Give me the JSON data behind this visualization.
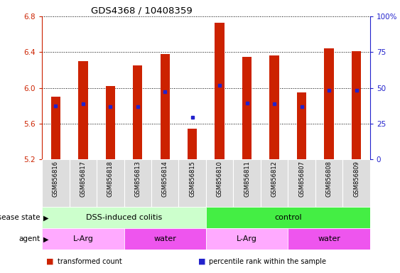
{
  "title": "GDS4368 / 10408359",
  "samples": [
    "GSM856816",
    "GSM856817",
    "GSM856818",
    "GSM856813",
    "GSM856814",
    "GSM856815",
    "GSM856810",
    "GSM856811",
    "GSM856812",
    "GSM856807",
    "GSM856808",
    "GSM856809"
  ],
  "bar_values": [
    5.9,
    6.3,
    6.02,
    6.25,
    6.38,
    5.54,
    6.73,
    6.35,
    6.36,
    5.95,
    6.44,
    6.41
  ],
  "blue_marker_values": [
    5.8,
    5.82,
    5.79,
    5.79,
    5.96,
    5.67,
    6.03,
    5.83,
    5.82,
    5.79,
    5.97,
    5.97
  ],
  "ymin": 5.2,
  "ymax": 6.8,
  "bar_color": "#CC2200",
  "blue_color": "#2222CC",
  "bar_width": 0.35,
  "disease_state_groups": [
    {
      "label": "DSS-induced colitis",
      "start": 0,
      "end": 6,
      "color": "#CCFFCC"
    },
    {
      "label": "control",
      "start": 6,
      "end": 12,
      "color": "#44EE44"
    }
  ],
  "agent_groups": [
    {
      "label": "L-Arg",
      "start": 0,
      "end": 3,
      "color": "#FFAAFF"
    },
    {
      "label": "water",
      "start": 3,
      "end": 6,
      "color": "#EE55EE"
    },
    {
      "label": "L-Arg",
      "start": 6,
      "end": 9,
      "color": "#FFAAFF"
    },
    {
      "label": "water",
      "start": 9,
      "end": 12,
      "color": "#EE55EE"
    }
  ],
  "left_yticks": [
    5.2,
    5.6,
    6.0,
    6.4,
    6.8
  ],
  "right_yticks": [
    0,
    25,
    50,
    75,
    100
  ],
  "right_yticklabels": [
    "0",
    "25",
    "50",
    "75",
    "100%"
  ],
  "left_ylabel_color": "#CC2200",
  "right_ylabel_color": "#2222CC",
  "legend_items": [
    {
      "label": "transformed count",
      "color": "#CC2200"
    },
    {
      "label": "percentile rank within the sample",
      "color": "#2222CC"
    }
  ],
  "grid_color": "#000000",
  "background_color": "#ffffff",
  "sample_label_bg": "#DDDDDD"
}
